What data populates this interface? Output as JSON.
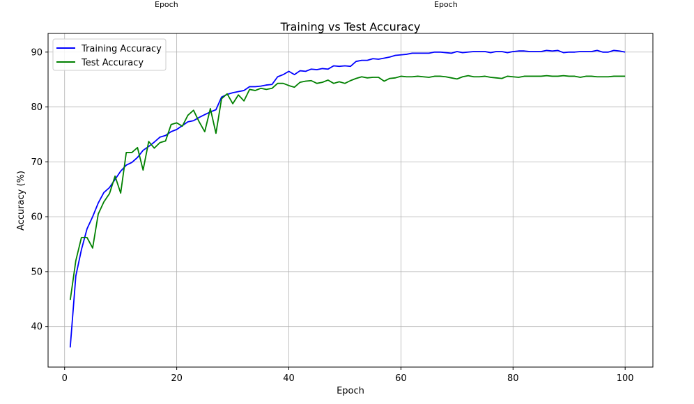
{
  "top_labels": [
    "Epoch",
    "Epoch"
  ],
  "chart_data": {
    "type": "line",
    "title": "Training vs Test Accuracy",
    "xlabel": "Epoch",
    "ylabel": "Accuracy (%)",
    "xlim": [
      -2.95,
      104.95
    ],
    "ylim": [
      32.6,
      93.4
    ],
    "xticks": [
      0,
      20,
      40,
      60,
      80,
      100
    ],
    "yticks": [
      40,
      50,
      60,
      70,
      80,
      90
    ],
    "grid": true,
    "legend_position": "top-left",
    "x": [
      1,
      2,
      3,
      4,
      5,
      6,
      7,
      8,
      9,
      10,
      11,
      12,
      13,
      14,
      15,
      16,
      17,
      18,
      19,
      20,
      21,
      22,
      23,
      24,
      25,
      26,
      27,
      28,
      29,
      30,
      31,
      32,
      33,
      34,
      35,
      36,
      37,
      38,
      39,
      40,
      41,
      42,
      43,
      44,
      45,
      46,
      47,
      48,
      49,
      50,
      51,
      52,
      53,
      54,
      55,
      56,
      57,
      58,
      59,
      60,
      61,
      62,
      63,
      64,
      65,
      66,
      67,
      68,
      69,
      70,
      71,
      72,
      73,
      74,
      75,
      76,
      77,
      78,
      79,
      80,
      81,
      82,
      83,
      84,
      85,
      86,
      87,
      88,
      89,
      90,
      91,
      92,
      93,
      94,
      95,
      96,
      97,
      98,
      99,
      100
    ],
    "series": [
      {
        "name": "Training Accuracy",
        "color": "#0000ff",
        "values": [
          36.2,
          49.2,
          54.0,
          57.8,
          60.0,
          62.5,
          64.4,
          65.3,
          66.8,
          68.3,
          69.4,
          69.9,
          70.8,
          72.1,
          72.8,
          73.6,
          74.5,
          74.8,
          75.5,
          75.9,
          76.6,
          77.3,
          77.5,
          78.1,
          78.6,
          79.1,
          79.5,
          81.8,
          82.3,
          82.6,
          82.8,
          83.0,
          83.7,
          83.7,
          83.8,
          84.0,
          84.1,
          85.5,
          85.9,
          86.5,
          85.9,
          86.6,
          86.5,
          86.9,
          86.8,
          87.0,
          86.9,
          87.5,
          87.4,
          87.5,
          87.4,
          88.3,
          88.5,
          88.5,
          88.8,
          88.7,
          88.9,
          89.1,
          89.4,
          89.5,
          89.6,
          89.8,
          89.8,
          89.8,
          89.8,
          90.0,
          90.0,
          89.9,
          89.8,
          90.1,
          89.9,
          90.0,
          90.1,
          90.1,
          90.1,
          89.9,
          90.1,
          90.1,
          89.9,
          90.1,
          90.2,
          90.2,
          90.1,
          90.1,
          90.1,
          90.3,
          90.2,
          90.3,
          89.9,
          90.0,
          90.0,
          90.1,
          90.1,
          90.1,
          90.3,
          90.0,
          90.0,
          90.3,
          90.2,
          90.0
        ]
      },
      {
        "name": "Test Accuracy",
        "color": "#008000",
        "values": [
          44.8,
          52.0,
          56.2,
          56.2,
          54.3,
          60.5,
          62.7,
          64.2,
          67.4,
          64.3,
          71.7,
          71.7,
          72.6,
          68.5,
          73.7,
          72.5,
          73.5,
          73.8,
          76.8,
          77.1,
          76.5,
          78.5,
          79.4,
          77.3,
          75.5,
          79.7,
          75.2,
          81.5,
          82.4,
          80.6,
          82.2,
          81.1,
          83.2,
          83.0,
          83.4,
          83.2,
          83.4,
          84.3,
          84.3,
          83.9,
          83.6,
          84.5,
          84.7,
          84.8,
          84.3,
          84.5,
          84.9,
          84.3,
          84.6,
          84.3,
          84.8,
          85.2,
          85.5,
          85.3,
          85.4,
          85.4,
          84.7,
          85.2,
          85.3,
          85.6,
          85.5,
          85.5,
          85.6,
          85.5,
          85.4,
          85.6,
          85.6,
          85.5,
          85.3,
          85.1,
          85.5,
          85.7,
          85.5,
          85.5,
          85.6,
          85.4,
          85.3,
          85.2,
          85.6,
          85.5,
          85.4,
          85.6,
          85.6,
          85.6,
          85.6,
          85.7,
          85.6,
          85.6,
          85.7,
          85.6,
          85.6,
          85.4,
          85.6,
          85.6,
          85.5,
          85.5,
          85.5,
          85.6,
          85.6,
          85.6
        ]
      }
    ]
  }
}
